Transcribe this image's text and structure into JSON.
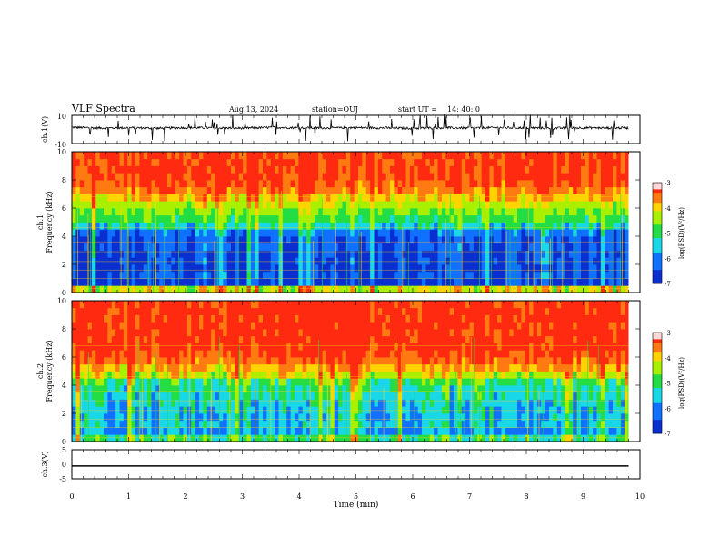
{
  "header": {
    "title": "VLF Spectra",
    "date": "Aug.13, 2024",
    "station": "station=OUJ",
    "start": "start UT =",
    "start_time": "14: 40: 0"
  },
  "colors": {
    "high": "#ff2a10",
    "mid_high": "#ffd400",
    "mid": "#22dd44",
    "mid_low": "#18d8e8",
    "low": "#0a2fd0",
    "lowest": "#000080",
    "trace": "#000000"
  },
  "chart_data": [
    {
      "type": "line",
      "panel": "ch1-waveform",
      "ylabel": "ch.1(V)",
      "ylim": [
        -10,
        10
      ],
      "yticks": [
        "10",
        "-10"
      ],
      "x": [
        0,
        0.5,
        1,
        1.5,
        2,
        2.5,
        3,
        3.5,
        4,
        4.5,
        5,
        5.5,
        6,
        6.5,
        7,
        7.5,
        8,
        8.5,
        9,
        9.5,
        9.8
      ],
      "y": [
        1.5,
        1.0,
        1.2,
        0.8,
        1.3,
        1.1,
        0.9,
        1.4,
        1.2,
        1.0,
        1.3,
        1.1,
        0.8,
        1.2,
        1.0,
        1.3,
        1.1,
        0.9,
        1.2,
        1.0,
        1.1
      ],
      "spikes_note_free": true,
      "xlim": [
        0,
        10
      ]
    },
    {
      "type": "heatmap",
      "panel": "ch1-spectrogram",
      "ylabel": "ch.1",
      "ylabel2": "Frequency (kHz)",
      "ylim": [
        0,
        10
      ],
      "yticks": [
        "0",
        "2",
        "4",
        "6",
        "8",
        "10"
      ],
      "xlim": [
        0,
        9.8
      ],
      "freq_bands_khz": [
        0,
        0.5,
        1,
        1.5,
        2,
        2.5,
        3,
        3.5,
        4,
        4.5,
        5,
        5.5,
        6,
        6.5,
        7,
        7.5,
        8,
        8.5,
        9,
        9.5,
        10
      ],
      "band_log_psd": [
        -4.2,
        -6.8,
        -6.5,
        -6.7,
        -6.6,
        -6.6,
        -6.4,
        -6.5,
        -6.2,
        -5.4,
        -4.9,
        -4.6,
        -4.3,
        -3.9,
        -3.6,
        -3.4,
        -3.3,
        -3.3,
        -3.3,
        -3.3
      ],
      "colorbar": {
        "label": "log(PSD)(V²/Hz)",
        "range": [
          -7,
          -3
        ],
        "ticks": [
          "-3",
          "-4",
          "-5",
          "-6",
          "-7"
        ]
      }
    },
    {
      "type": "heatmap",
      "panel": "ch2-spectrogram",
      "ylabel": "ch.2",
      "ylabel2": "Frequency (kHz)",
      "ylim": [
        0,
        10
      ],
      "yticks": [
        "0",
        "2",
        "4",
        "6",
        "8",
        "10"
      ],
      "xlim": [
        0,
        9.8
      ],
      "freq_bands_khz": [
        0,
        0.5,
        1,
        1.5,
        2,
        2.5,
        3,
        3.5,
        4,
        4.5,
        5,
        5.5,
        6,
        6.5,
        7,
        7.5,
        8,
        8.5,
        9,
        9.5,
        10
      ],
      "band_log_psd": [
        -5.0,
        -5.8,
        -5.6,
        -5.7,
        -5.6,
        -5.5,
        -5.3,
        -5.2,
        -4.9,
        -4.2,
        -3.8,
        -3.5,
        -3.3,
        -3.2,
        -3.2,
        -3.2,
        -3.2,
        -3.2,
        -3.2,
        -3.2
      ],
      "colorbar": {
        "label": "log(PSD)(V²/Hz)",
        "range": [
          -7,
          -3
        ],
        "ticks": [
          "-3",
          "-4",
          "-5",
          "-6",
          "-7"
        ]
      }
    },
    {
      "type": "line",
      "panel": "ch3-waveform",
      "ylabel": "ch.3(V)",
      "ylim": [
        -5,
        5
      ],
      "yticks": [
        "5",
        "0",
        "-5"
      ],
      "x": [
        0,
        9.8
      ],
      "y": [
        -0.6,
        -0.6
      ],
      "xlim": [
        0,
        10
      ],
      "xlabel": "Time (min)",
      "xticks": [
        "0",
        "1",
        "2",
        "3",
        "4",
        "5",
        "6",
        "7",
        "8",
        "9",
        "10"
      ]
    }
  ]
}
